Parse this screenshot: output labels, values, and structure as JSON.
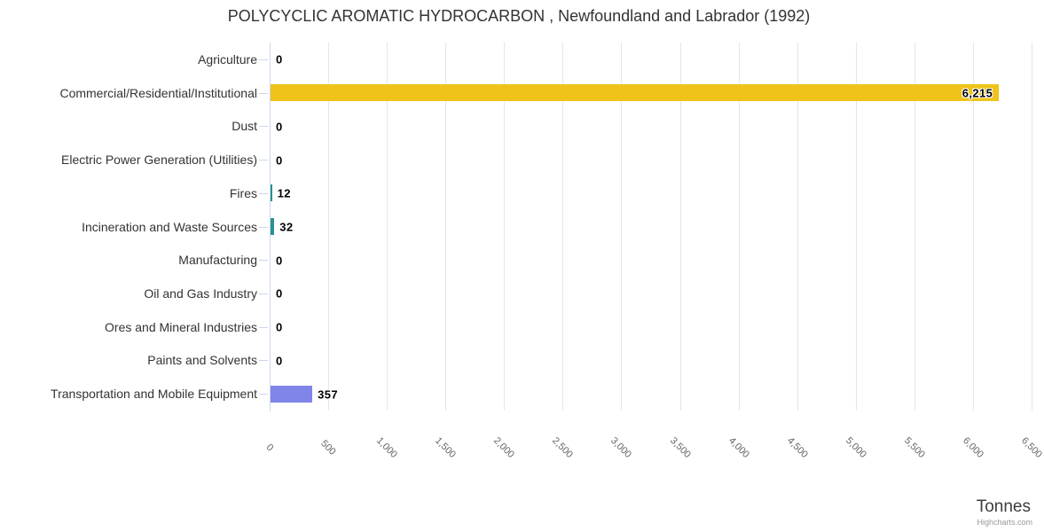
{
  "title": "POLYCYCLIC AROMATIC HYDROCARBON , Newfoundland and Labrador (1992)",
  "chart_data": {
    "type": "bar",
    "orientation": "horizontal",
    "title": "POLYCYCLIC AROMATIC HYDROCARBON , Newfoundland and Labrador (1992)",
    "categories": [
      "Agriculture",
      "Commercial/Residential/Institutional",
      "Dust",
      "Electric Power Generation (Utilities)",
      "Fires",
      "Incineration and Waste Sources",
      "Manufacturing",
      "Oil and Gas Industry",
      "Ores and Mineral Industries",
      "Paints and Solvents",
      "Transportation and Mobile Equipment"
    ],
    "values": [
      0,
      6215,
      0,
      0,
      12,
      32,
      0,
      0,
      0,
      0,
      357
    ],
    "value_labels": [
      "0",
      "6,215",
      "0",
      "0",
      "12",
      "32",
      "0",
      "0",
      "0",
      "0",
      "357"
    ],
    "bar_colors": [
      "#7cb5ec",
      "#efc31a",
      "#7cb5ec",
      "#7cb5ec",
      "#2b908f",
      "#2b908f",
      "#7cb5ec",
      "#7cb5ec",
      "#7cb5ec",
      "#7cb5ec",
      "#8085e9"
    ],
    "xlabel": "Tonnes",
    "ylabel": "",
    "xlim": [
      0,
      6500
    ],
    "tick_interval": 500,
    "x_tick_labels": [
      "0",
      "500",
      "1,000",
      "1,500",
      "2,000",
      "2,500",
      "3,000",
      "3,500",
      "4,000",
      "4,500",
      "5,000",
      "5,500",
      "6,000",
      "6,500"
    ],
    "grid": true,
    "legend": false,
    "credit": "Highcharts.com",
    "colors": {
      "grid": "#e6e6e6",
      "axis": "#ccd6eb",
      "category_label": "#333333",
      "tick_label": "#666666",
      "data_label": "#000000"
    }
  }
}
